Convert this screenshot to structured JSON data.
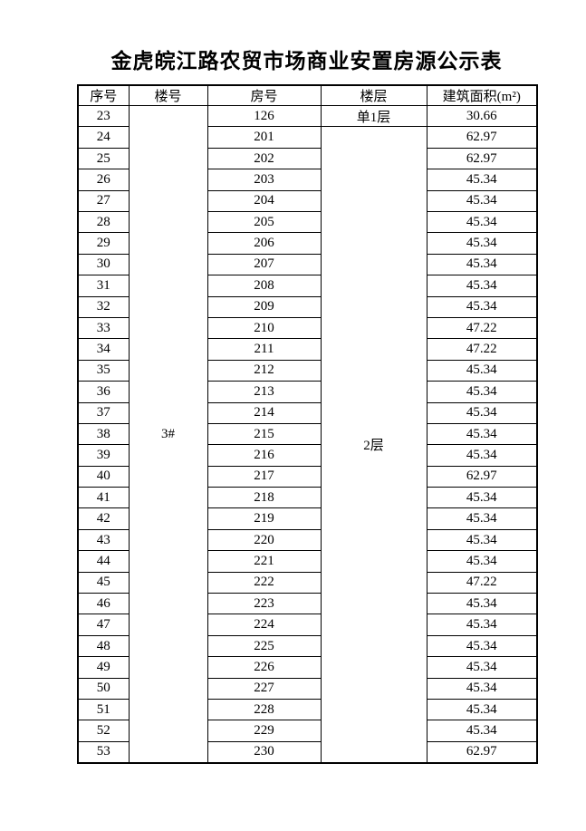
{
  "page": {
    "title": "金虎皖江路农贸市场商业安置房源公示表"
  },
  "table": {
    "headers": {
      "serial": "序号",
      "building": "楼号",
      "room": "房号",
      "floor": "楼层",
      "area": "建筑面积(m²)"
    },
    "building_merged": {
      "label": "3#",
      "rowspan": 31
    },
    "floor_cells": [
      {
        "label": "单1层",
        "rowspan": 1
      },
      {
        "label": "2层",
        "rowspan": 30
      }
    ],
    "rows": [
      {
        "serial": "23",
        "room": "126",
        "area": "30.66"
      },
      {
        "serial": "24",
        "room": "201",
        "area": "62.97"
      },
      {
        "serial": "25",
        "room": "202",
        "area": "62.97"
      },
      {
        "serial": "26",
        "room": "203",
        "area": "45.34"
      },
      {
        "serial": "27",
        "room": "204",
        "area": "45.34"
      },
      {
        "serial": "28",
        "room": "205",
        "area": "45.34"
      },
      {
        "serial": "29",
        "room": "206",
        "area": "45.34"
      },
      {
        "serial": "30",
        "room": "207",
        "area": "45.34"
      },
      {
        "serial": "31",
        "room": "208",
        "area": "45.34"
      },
      {
        "serial": "32",
        "room": "209",
        "area": "45.34"
      },
      {
        "serial": "33",
        "room": "210",
        "area": "47.22"
      },
      {
        "serial": "34",
        "room": "211",
        "area": "47.22"
      },
      {
        "serial": "35",
        "room": "212",
        "area": "45.34"
      },
      {
        "serial": "36",
        "room": "213",
        "area": "45.34"
      },
      {
        "serial": "37",
        "room": "214",
        "area": "45.34"
      },
      {
        "serial": "38",
        "room": "215",
        "area": "45.34"
      },
      {
        "serial": "39",
        "room": "216",
        "area": "45.34"
      },
      {
        "serial": "40",
        "room": "217",
        "area": "62.97"
      },
      {
        "serial": "41",
        "room": "218",
        "area": "45.34"
      },
      {
        "serial": "42",
        "room": "219",
        "area": "45.34"
      },
      {
        "serial": "43",
        "room": "220",
        "area": "45.34"
      },
      {
        "serial": "44",
        "room": "221",
        "area": "45.34"
      },
      {
        "serial": "45",
        "room": "222",
        "area": "47.22"
      },
      {
        "serial": "46",
        "room": "223",
        "area": "45.34"
      },
      {
        "serial": "47",
        "room": "224",
        "area": "45.34"
      },
      {
        "serial": "48",
        "room": "225",
        "area": "45.34"
      },
      {
        "serial": "49",
        "room": "226",
        "area": "45.34"
      },
      {
        "serial": "50",
        "room": "227",
        "area": "45.34"
      },
      {
        "serial": "51",
        "room": "228",
        "area": "45.34"
      },
      {
        "serial": "52",
        "room": "229",
        "area": "45.34"
      },
      {
        "serial": "53",
        "room": "230",
        "area": "62.97"
      }
    ]
  }
}
